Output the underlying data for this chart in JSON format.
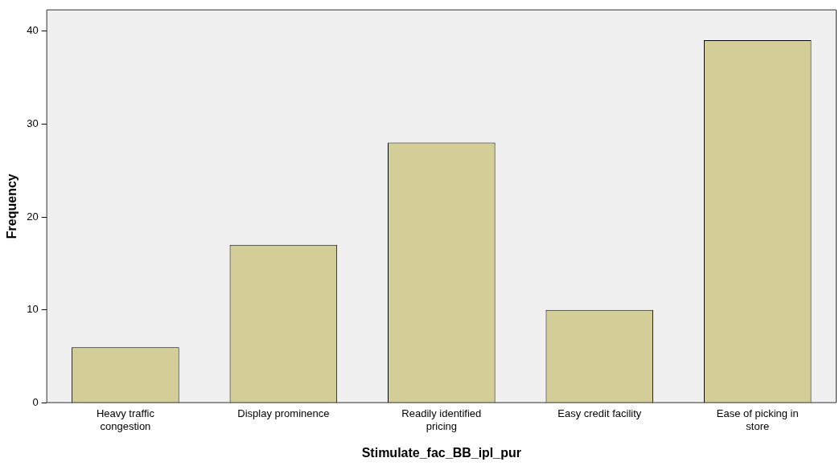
{
  "chart_data": {
    "type": "bar",
    "xlabel": "Stimulate_fac_BB_ipl_pur",
    "ylabel": "Frequency",
    "categories": [
      "Heavy traffic congestion",
      "Display prominence",
      "Readily identified pricing",
      "Easy credit facility",
      "Ease of picking in store"
    ],
    "values": [
      6,
      17,
      28,
      10,
      39
    ],
    "color": "#d3ce97",
    "ylim": [
      0,
      42.3
    ],
    "yticks": [
      0,
      10,
      20,
      30,
      40
    ],
    "grid": false,
    "legend": false
  }
}
